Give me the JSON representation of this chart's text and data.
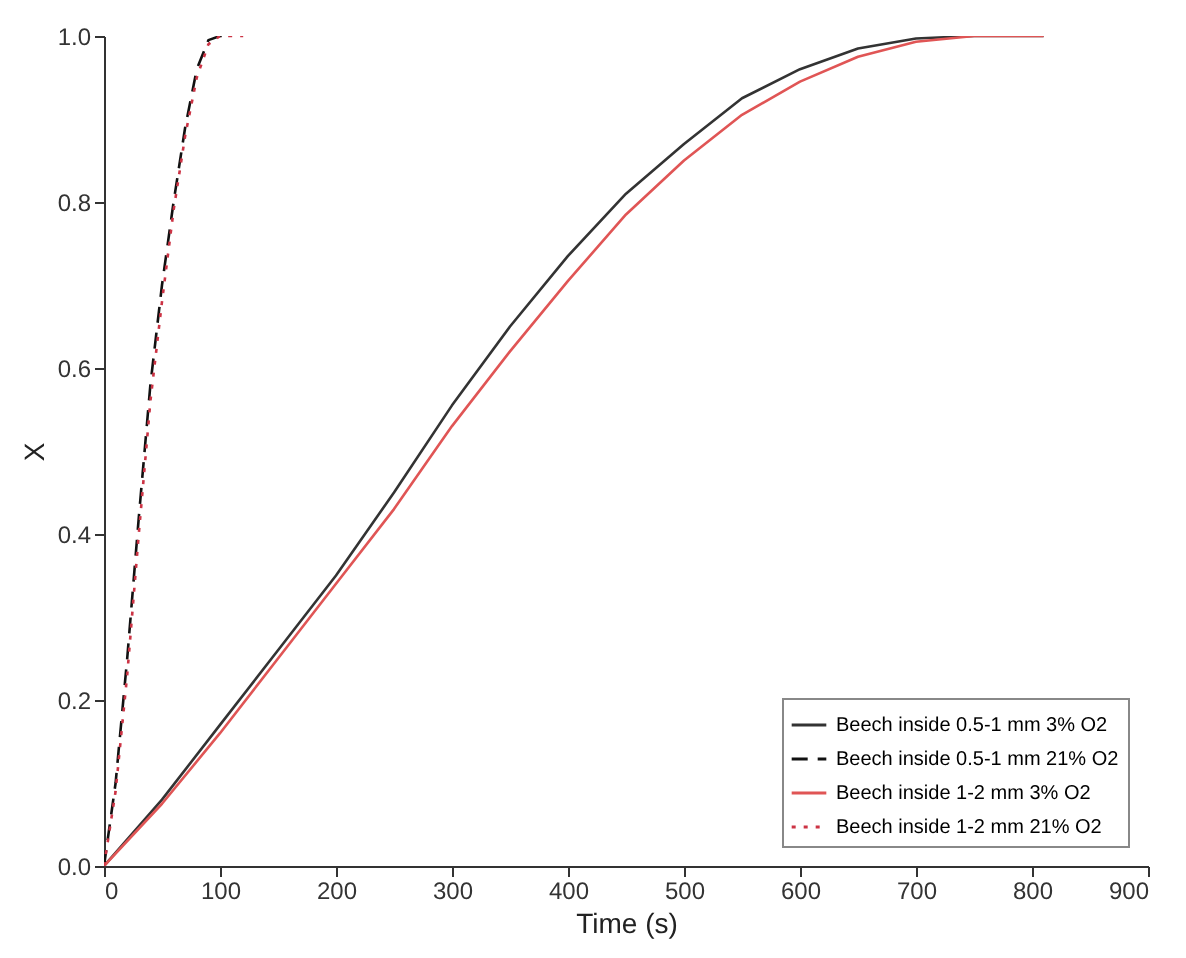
{
  "chart_data": {
    "type": "line",
    "xlabel": "Time (s)",
    "ylabel": "X",
    "xlim": [
      0,
      900
    ],
    "xticks": [
      0,
      100,
      200,
      300,
      400,
      500,
      600,
      700,
      800,
      900
    ],
    "ylim": [
      0,
      1
    ],
    "yticks": [
      {
        "value": 0,
        "label": "0.0"
      },
      {
        "value": 0.2,
        "label": "0.2"
      },
      {
        "value": 0.4,
        "label": "0.4"
      },
      {
        "value": 0.6,
        "label": "0.6"
      },
      {
        "value": 0.8,
        "label": "0.8"
      },
      {
        "value": 1,
        "label": "1.0"
      }
    ],
    "grid": false,
    "legend": "bottom right",
    "marker": "none",
    "series": [
      {
        "name": "Beech inside 0.5-1 mm 3% O2",
        "color": "#333333",
        "line_style": "solid",
        "x": [
          0,
          50,
          100,
          150,
          200,
          250,
          300,
          350,
          400,
          450,
          500,
          550,
          600,
          650,
          700,
          750,
          810
        ],
        "values": [
          0,
          0.08,
          0.17,
          0.26,
          0.35,
          0.45,
          0.555,
          0.65,
          0.735,
          0.81,
          0.87,
          0.925,
          0.96,
          0.985,
          0.997,
          1.0,
          1.0
        ]
      },
      {
        "name": "Beech inside 0.5-1 mm 21% O2",
        "color": "#111111",
        "line_style": "dashed",
        "x": [
          0,
          10,
          20,
          30,
          40,
          50,
          60,
          70,
          80,
          90,
          100,
          110
        ],
        "values": [
          0,
          0.1,
          0.25,
          0.42,
          0.58,
          0.7,
          0.8,
          0.89,
          0.96,
          0.995,
          1.0,
          1.0
        ]
      },
      {
        "name": "Beech inside 1-2 mm 3% O2",
        "color": "#e05555",
        "line_style": "solid",
        "x": [
          0,
          50,
          100,
          150,
          200,
          250,
          300,
          350,
          400,
          450,
          500,
          550,
          600,
          650,
          700,
          750,
          810
        ],
        "values": [
          0,
          0.075,
          0.16,
          0.25,
          0.34,
          0.43,
          0.53,
          0.62,
          0.705,
          0.785,
          0.85,
          0.905,
          0.945,
          0.975,
          0.993,
          1.0,
          1.0
        ]
      },
      {
        "name": "Beech inside 1-2 mm 21% O2",
        "color": "#cc3344",
        "line_style": "dotted",
        "x": [
          0,
          10,
          20,
          30,
          40,
          50,
          60,
          70,
          80,
          90,
          100,
          120
        ],
        "values": [
          0,
          0.09,
          0.23,
          0.4,
          0.56,
          0.68,
          0.79,
          0.88,
          0.95,
          0.99,
          1.0,
          1.0
        ]
      }
    ]
  }
}
